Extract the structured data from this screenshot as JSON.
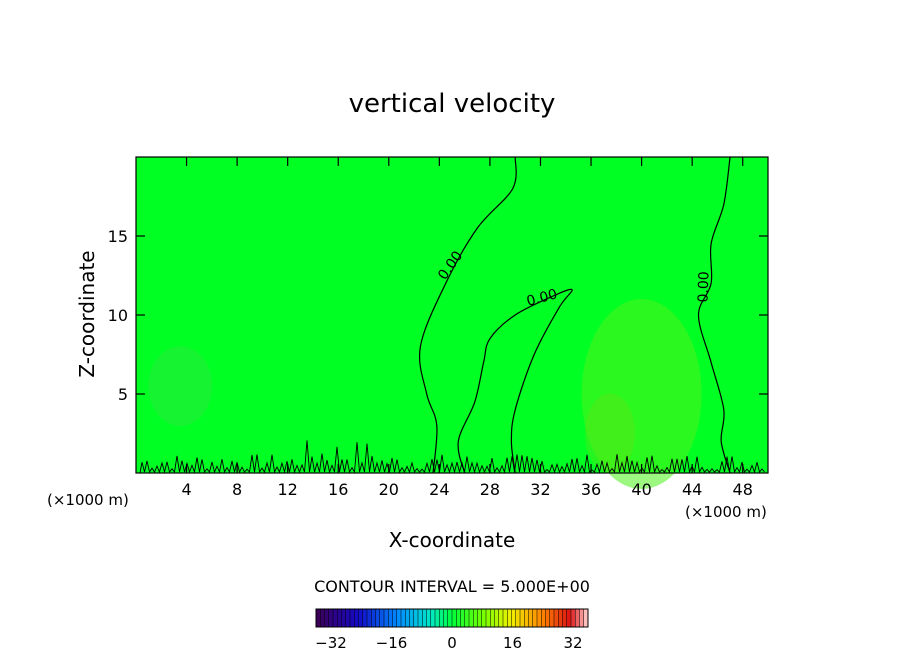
{
  "chart_data": {
    "type": "heatmap",
    "title": "vertical velocity",
    "xlabel": "X-coordinate",
    "ylabel": "Z-coordinate",
    "x_unit_left": "(×1000 m)",
    "x_unit_right": "(×1000 m)",
    "xlim": [
      0,
      50
    ],
    "ylim": [
      0,
      20
    ],
    "xticks": [
      4,
      8,
      12,
      16,
      20,
      24,
      28,
      32,
      36,
      40,
      44,
      48
    ],
    "xtick_labels": [
      "4",
      "8",
      "12",
      "16",
      "20",
      "24",
      "28",
      "32",
      "36",
      "40",
      "44",
      "48"
    ],
    "yticks": [
      5,
      10,
      15
    ],
    "ytick_labels": [
      "5",
      "10",
      "15"
    ],
    "contour_interval_label": "CONTOUR INTERVAL = 5.000E+00",
    "contour_labels": [
      "0.00",
      "0.00",
      "0.00"
    ],
    "contours": [
      {
        "level": 0.0,
        "points": [
          [
            30,
            20
          ],
          [
            29.8,
            18
          ],
          [
            27,
            15.5
          ],
          [
            24.5,
            12
          ],
          [
            22.5,
            8
          ],
          [
            23,
            5
          ],
          [
            23.8,
            3
          ],
          [
            23.5,
            0
          ]
        ]
      },
      {
        "level": 0.0,
        "points": [
          [
            26,
            0
          ],
          [
            25.5,
            2
          ],
          [
            26.8,
            4.5
          ],
          [
            27.5,
            7
          ],
          [
            28,
            8.5
          ],
          [
            30,
            10
          ],
          [
            33,
            11.2
          ],
          [
            34.5,
            11.6
          ],
          [
            33.5,
            10.5
          ],
          [
            31.5,
            7.5
          ],
          [
            30,
            4
          ],
          [
            29.7,
            2
          ],
          [
            30,
            0
          ]
        ]
      },
      {
        "level": 0.0,
        "points": [
          [
            47,
            20
          ],
          [
            46.5,
            17
          ],
          [
            45.5,
            14.5
          ],
          [
            45.5,
            12
          ],
          [
            44.5,
            10
          ],
          [
            45.5,
            7
          ],
          [
            46.5,
            4
          ],
          [
            46.3,
            2
          ],
          [
            47,
            0
          ]
        ]
      }
    ],
    "colorbar": {
      "min": -32,
      "max": 32,
      "ticks": [
        -32,
        -16,
        0,
        16,
        32
      ],
      "tick_labels": [
        "−32",
        "−16",
        "0",
        "16",
        "32"
      ]
    },
    "colors": {
      "field_background": "#00ff23",
      "updraft_patch": "#4cf21c",
      "downdraft_patch": "#24ec3a"
    },
    "grid": false,
    "legend": "none"
  }
}
